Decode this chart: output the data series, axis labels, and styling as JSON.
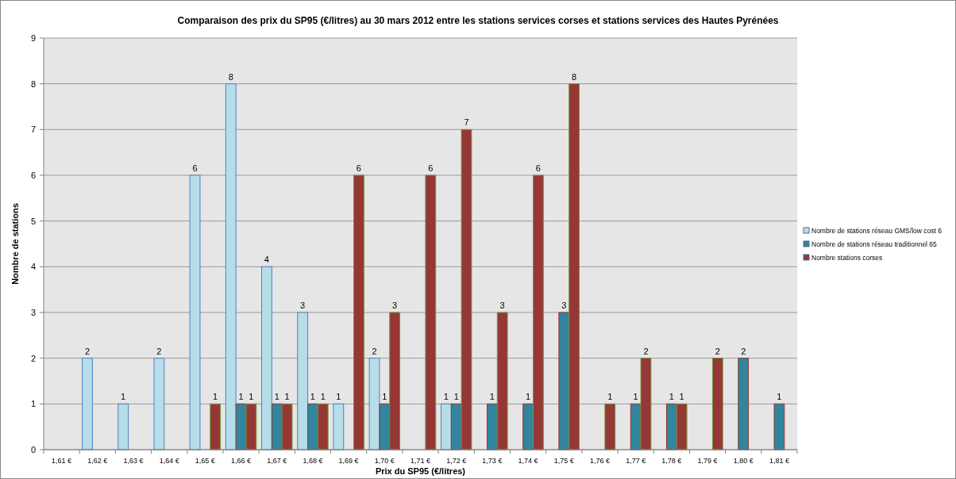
{
  "chart_data": {
    "type": "bar",
    "title": "Comparaison des prix du SP95 (€/litres) au 30 mars 2012 entre les stations services corses et stations services des Hautes Pyrénées",
    "xlabel": "Prix du SP95 (€/litres)",
    "ylabel": "Nombre de stations",
    "categories": [
      "1,61 €",
      "1,62 €",
      "1,63 €",
      "1,64 €",
      "1,65 €",
      "1,66 €",
      "1,67 €",
      "1,68 €",
      "1,69 €",
      "1,70 €",
      "1,71 €",
      "1,72 €",
      "1,73 €",
      "1,74 €",
      "1,75 €",
      "1,76 €",
      "1,77 €",
      "1,78 €",
      "1,79 €",
      "1,80 €",
      "1,81 €"
    ],
    "series": [
      {
        "name": "Nombre de stations réseau GMS/low cost 6",
        "color": "#b7dde8",
        "values": [
          null,
          2,
          1,
          2,
          6,
          8,
          4,
          3,
          1,
          2,
          null,
          1,
          null,
          null,
          null,
          null,
          null,
          null,
          null,
          null,
          null
        ]
      },
      {
        "name": "Nombre de stations réseau traditionnel 65",
        "color": "#31859c",
        "values": [
          null,
          null,
          null,
          null,
          null,
          1,
          1,
          1,
          null,
          1,
          null,
          1,
          1,
          1,
          3,
          null,
          1,
          1,
          null,
          2,
          1
        ]
      },
      {
        "name": "Nombre stations corses",
        "color": "#953735",
        "values": [
          null,
          null,
          null,
          null,
          1,
          1,
          1,
          1,
          6,
          3,
          6,
          7,
          3,
          6,
          8,
          1,
          2,
          1,
          2,
          null,
          null
        ]
      }
    ],
    "ylim": [
      0,
      9
    ],
    "yticks": [
      0,
      1,
      2,
      3,
      4,
      5,
      6,
      7,
      8,
      9
    ],
    "grid": "y",
    "legend": "right",
    "data_labels": true
  }
}
